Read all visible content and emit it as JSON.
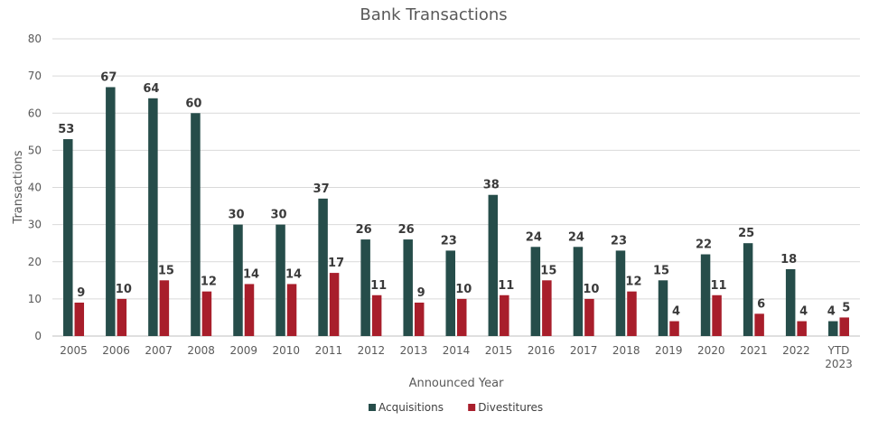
{
  "chart_data": {
    "type": "bar",
    "title": "Bank Transactions",
    "xlabel": "Announced Year",
    "ylabel": "Transactions",
    "ylim": [
      0,
      80
    ],
    "yticks": [
      0,
      10,
      20,
      30,
      40,
      50,
      60,
      70,
      80
    ],
    "grid": true,
    "legend_position": "bottom",
    "categories": [
      "2005",
      "2006",
      "2007",
      "2008",
      "2009",
      "2010",
      "2011",
      "2012",
      "2013",
      "2014",
      "2015",
      "2016",
      "2017",
      "2018",
      "2019",
      "2020",
      "2021",
      "2022",
      "YTD 2023"
    ],
    "series": [
      {
        "name": "Acquisitions",
        "color": "#264d4a",
        "values": [
          53,
          67,
          64,
          60,
          30,
          30,
          37,
          26,
          26,
          23,
          38,
          24,
          24,
          23,
          15,
          22,
          25,
          18,
          4
        ]
      },
      {
        "name": "Divestitures",
        "color": "#a81e2b",
        "values": [
          9,
          10,
          15,
          12,
          14,
          14,
          17,
          11,
          9,
          10,
          11,
          15,
          10,
          12,
          4,
          11,
          6,
          4,
          5
        ]
      }
    ]
  }
}
